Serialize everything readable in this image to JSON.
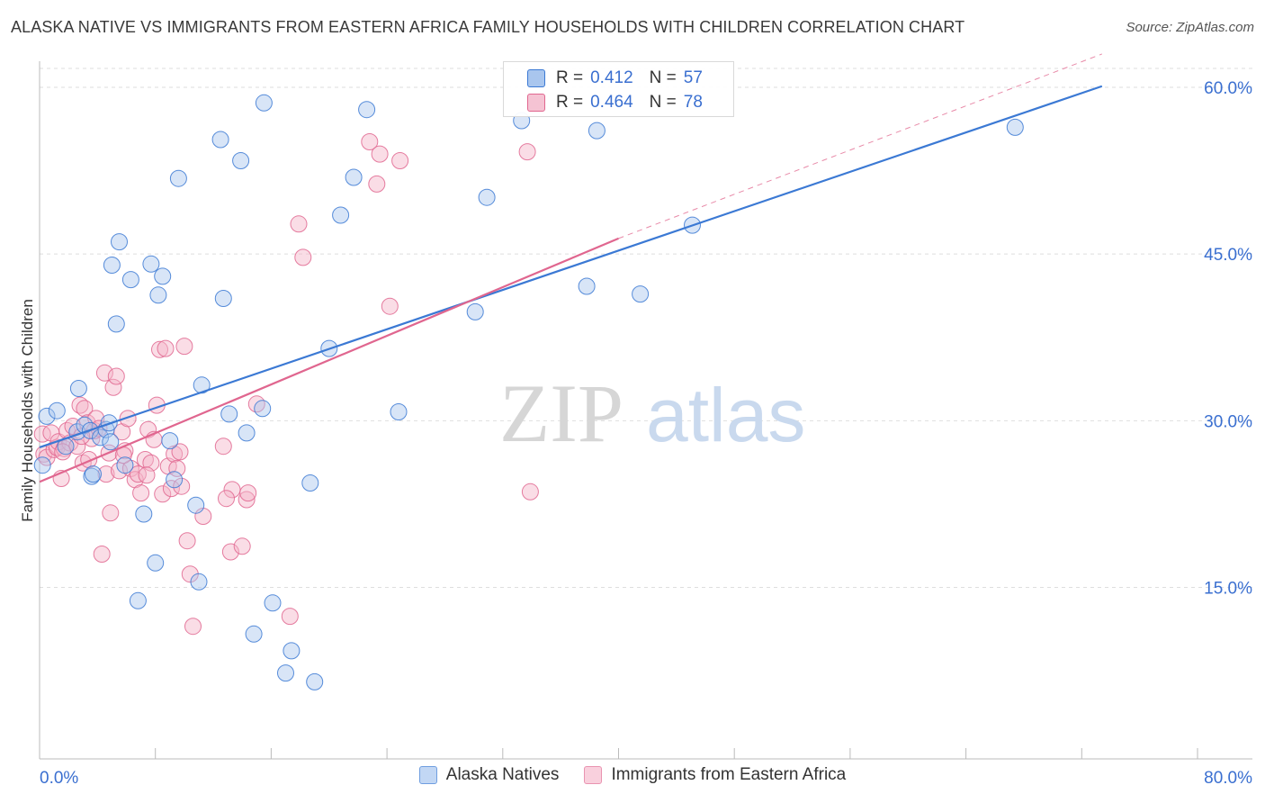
{
  "title": "ALASKA NATIVE VS IMMIGRANTS FROM EASTERN AFRICA FAMILY HOUSEHOLDS WITH CHILDREN CORRELATION CHART",
  "source": "Source: ZipAtlas.com",
  "watermark": {
    "zip": "ZIP",
    "atlas": "atlas"
  },
  "colors": {
    "blue": "#3b79d4",
    "blue_fill": "#a9c6ee",
    "pink": "#e0668f",
    "pink_fill": "#f5b4c8",
    "axis_label": "#3a6fd0",
    "grid": "#dddddd"
  },
  "stats": {
    "rows": [
      {
        "series": "Alaska Natives",
        "r_label": "R =",
        "r": "0.412",
        "n_label": "N =",
        "n": "57"
      },
      {
        "series": "Immigrants from Eastern Africa",
        "r_label": "R =",
        "r": "0.464",
        "n_label": "N =",
        "n": "78"
      }
    ]
  },
  "legend": {
    "items": [
      "Alaska Natives",
      "Immigrants from Eastern Africa"
    ]
  },
  "chart_data": {
    "type": "scatter",
    "title": "ALASKA NATIVE VS IMMIGRANTS FROM EASTERN AFRICA FAMILY HOUSEHOLDS WITH CHILDREN CORRELATION CHART",
    "xlabel": "",
    "ylabel": "Family Households with Children",
    "xlim": [
      0,
      80
    ],
    "ylim": [
      0,
      63
    ],
    "x_tick_labels": [
      "0.0%",
      "80.0%"
    ],
    "y_tick_values": [
      15,
      30,
      45,
      60
    ],
    "y_tick_labels": [
      "15.0%",
      "30.0%",
      "45.0%",
      "60.0%"
    ],
    "grid": true,
    "series": [
      {
        "name": "Alaska Natives",
        "color": "#3b79d4",
        "trend": {
          "x": [
            0,
            73.4
          ],
          "y": [
            27.6,
            60.1
          ]
        },
        "points": [
          [
            0.2,
            26.0
          ],
          [
            0.5,
            30.4
          ],
          [
            1.2,
            30.9
          ],
          [
            1.8,
            27.7
          ],
          [
            2.6,
            29.0
          ],
          [
            2.7,
            32.9
          ],
          [
            3.1,
            29.6
          ],
          [
            3.5,
            29.1
          ],
          [
            3.6,
            25.0
          ],
          [
            3.7,
            25.2
          ],
          [
            4.2,
            28.5
          ],
          [
            4.6,
            29.2
          ],
          [
            4.8,
            29.8
          ],
          [
            4.9,
            28.1
          ],
          [
            5.0,
            44.0
          ],
          [
            5.3,
            38.7
          ],
          [
            5.5,
            46.1
          ],
          [
            5.9,
            26.0
          ],
          [
            6.3,
            42.7
          ],
          [
            6.8,
            13.8
          ],
          [
            7.2,
            21.6
          ],
          [
            7.7,
            44.1
          ],
          [
            8.0,
            17.2
          ],
          [
            8.2,
            41.3
          ],
          [
            8.5,
            43.0
          ],
          [
            9.0,
            28.2
          ],
          [
            9.3,
            24.7
          ],
          [
            9.6,
            51.8
          ],
          [
            10.8,
            22.4
          ],
          [
            11.0,
            15.5
          ],
          [
            11.2,
            33.2
          ],
          [
            12.5,
            55.3
          ],
          [
            12.7,
            41.0
          ],
          [
            13.1,
            30.6
          ],
          [
            13.9,
            53.4
          ],
          [
            14.3,
            28.9
          ],
          [
            14.8,
            10.8
          ],
          [
            15.4,
            31.1
          ],
          [
            15.5,
            58.6
          ],
          [
            16.1,
            13.6
          ],
          [
            17.0,
            7.3
          ],
          [
            17.4,
            9.3
          ],
          [
            18.7,
            24.4
          ],
          [
            19.0,
            6.5
          ],
          [
            20.0,
            36.5
          ],
          [
            20.8,
            48.5
          ],
          [
            21.7,
            51.9
          ],
          [
            22.6,
            58.0
          ],
          [
            24.8,
            30.8
          ],
          [
            30.1,
            39.8
          ],
          [
            30.9,
            50.1
          ],
          [
            33.3,
            57.0
          ],
          [
            37.8,
            42.1
          ],
          [
            38.5,
            56.1
          ],
          [
            41.5,
            41.4
          ],
          [
            45.1,
            47.6
          ],
          [
            67.4,
            56.4
          ]
        ]
      },
      {
        "name": "Immigrants from Eastern Africa",
        "color": "#e0668f",
        "trend": {
          "x": [
            0,
            40
          ],
          "y": [
            24.5,
            46.4
          ]
        },
        "dash": {
          "x": [
            40,
            73.4
          ],
          "y": [
            46.4,
            63.0
          ]
        },
        "points": [
          [
            0.2,
            28.8
          ],
          [
            0.3,
            27.0
          ],
          [
            0.5,
            26.7
          ],
          [
            0.8,
            28.9
          ],
          [
            1.0,
            27.4
          ],
          [
            1.2,
            27.6
          ],
          [
            1.3,
            28.1
          ],
          [
            1.5,
            24.8
          ],
          [
            1.7,
            27.5
          ],
          [
            1.9,
            29.1
          ],
          [
            2.1,
            28.0
          ],
          [
            2.3,
            29.5
          ],
          [
            2.6,
            27.7
          ],
          [
            2.8,
            31.4
          ],
          [
            3.0,
            26.2
          ],
          [
            3.1,
            31.1
          ],
          [
            3.3,
            29.8
          ],
          [
            3.4,
            26.5
          ],
          [
            3.6,
            28.4
          ],
          [
            3.8,
            29.1
          ],
          [
            3.9,
            30.2
          ],
          [
            4.1,
            29.3
          ],
          [
            4.3,
            18.0
          ],
          [
            4.5,
            34.3
          ],
          [
            4.6,
            25.2
          ],
          [
            4.8,
            27.1
          ],
          [
            4.9,
            21.7
          ],
          [
            5.1,
            33.0
          ],
          [
            5.3,
            34.0
          ],
          [
            5.5,
            25.5
          ],
          [
            5.7,
            29.0
          ],
          [
            5.9,
            27.3
          ],
          [
            6.1,
            30.2
          ],
          [
            6.3,
            25.7
          ],
          [
            6.6,
            24.7
          ],
          [
            6.8,
            25.2
          ],
          [
            7.0,
            23.5
          ],
          [
            7.3,
            26.5
          ],
          [
            7.5,
            29.2
          ],
          [
            7.7,
            26.2
          ],
          [
            7.9,
            28.3
          ],
          [
            8.1,
            31.4
          ],
          [
            8.3,
            36.4
          ],
          [
            8.5,
            23.4
          ],
          [
            8.7,
            36.5
          ],
          [
            8.9,
            25.9
          ],
          [
            9.1,
            23.9
          ],
          [
            9.3,
            27.0
          ],
          [
            9.5,
            25.7
          ],
          [
            9.7,
            27.2
          ],
          [
            10.0,
            36.7
          ],
          [
            10.2,
            19.2
          ],
          [
            10.4,
            16.2
          ],
          [
            10.6,
            11.5
          ],
          [
            11.3,
            21.4
          ],
          [
            12.7,
            27.7
          ],
          [
            13.2,
            18.2
          ],
          [
            13.3,
            23.8
          ],
          [
            14.0,
            18.7
          ],
          [
            14.3,
            22.9
          ],
          [
            14.4,
            23.5
          ],
          [
            15.0,
            31.5
          ],
          [
            17.3,
            12.4
          ],
          [
            17.9,
            47.7
          ],
          [
            18.2,
            44.7
          ],
          [
            22.8,
            55.1
          ],
          [
            23.3,
            51.3
          ],
          [
            23.5,
            54.0
          ],
          [
            24.2,
            40.3
          ],
          [
            24.9,
            53.4
          ],
          [
            33.7,
            54.2
          ],
          [
            33.9,
            23.6
          ],
          [
            1.6,
            27.2
          ],
          [
            2.9,
            28.6
          ],
          [
            5.8,
            26.9
          ],
          [
            7.4,
            25.1
          ],
          [
            9.8,
            24.1
          ],
          [
            12.9,
            23.0
          ]
        ]
      }
    ]
  }
}
